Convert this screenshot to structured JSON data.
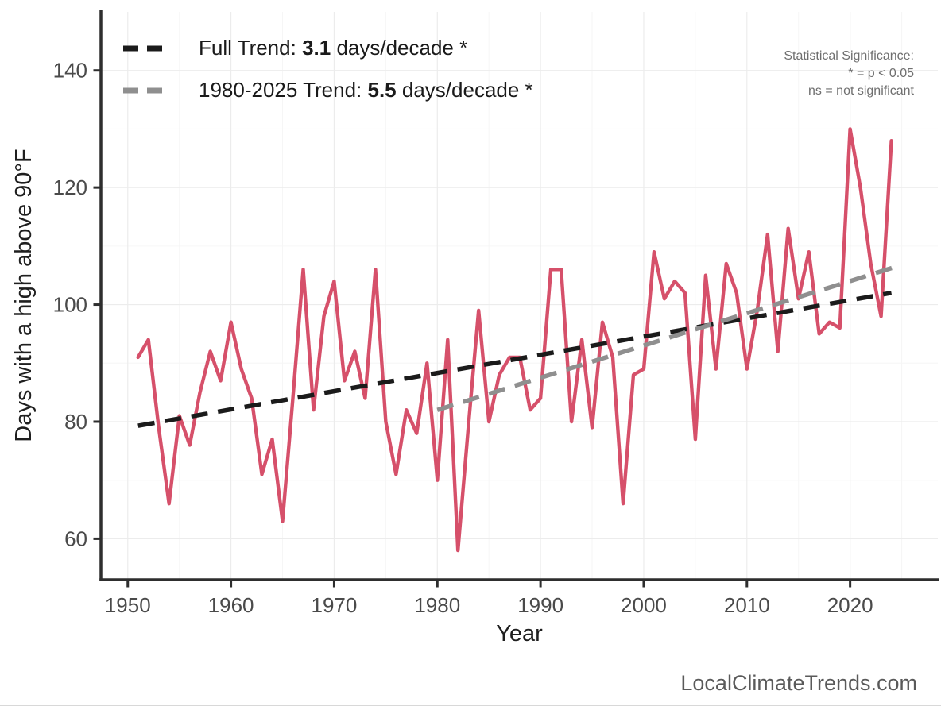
{
  "page": {
    "watermark": "LocalClimateTrends.com"
  },
  "legend": {
    "full_trend": {
      "prefix": "Full Trend: ",
      "value": "3.1",
      "suffix": " days/decade *"
    },
    "recent_trend": {
      "prefix": "1980-2025 Trend: ",
      "value": "5.5",
      "suffix": " days/decade *"
    }
  },
  "significance_note": {
    "line1": "Statistical Significance:",
    "line2": "* = p < 0.05",
    "line3": "ns = not significant"
  },
  "chart_data": {
    "type": "line",
    "xlabel": "Year",
    "ylabel": "Days with a high above 90°F",
    "x": [
      1951,
      1952,
      1953,
      1954,
      1955,
      1956,
      1957,
      1958,
      1959,
      1960,
      1961,
      1962,
      1963,
      1964,
      1965,
      1966,
      1967,
      1968,
      1969,
      1970,
      1971,
      1972,
      1973,
      1974,
      1975,
      1976,
      1977,
      1978,
      1979,
      1980,
      1981,
      1982,
      1983,
      1984,
      1985,
      1986,
      1987,
      1988,
      1989,
      1990,
      1991,
      1992,
      1993,
      1994,
      1995,
      1996,
      1997,
      1998,
      1999,
      2000,
      2001,
      2002,
      2003,
      2004,
      2005,
      2006,
      2007,
      2008,
      2009,
      2010,
      2011,
      2012,
      2013,
      2014,
      2015,
      2016,
      2017,
      2018,
      2019,
      2020,
      2021,
      2022,
      2023,
      2024
    ],
    "series": [
      {
        "name": "days-above-90F-per-year",
        "color": "#d6506a",
        "values": [
          91,
          94,
          79,
          66,
          81,
          76,
          85,
          92,
          87,
          97,
          89,
          84,
          71,
          77,
          63,
          84,
          106,
          82,
          98,
          104,
          87,
          92,
          84,
          106,
          80,
          71,
          82,
          78,
          90,
          70,
          94,
          58,
          79,
          99,
          80,
          88,
          91,
          91,
          82,
          84,
          106,
          106,
          80,
          94,
          79,
          97,
          91,
          66,
          88,
          89,
          109,
          101,
          104,
          102,
          77,
          105,
          89,
          107,
          102,
          89,
          99,
          112,
          92,
          113,
          101,
          109,
          95,
          97,
          96,
          130,
          120,
          107,
          98,
          128
        ]
      }
    ],
    "trend_lines": [
      {
        "name": "Full Trend",
        "slope_days_per_decade": 3.1,
        "significant": true,
        "color": "#1b1b1b",
        "style": "dashed",
        "x": [
          1951,
          2024
        ],
        "y": [
          79.3,
          102.0
        ]
      },
      {
        "name": "1980-2025 Trend",
        "slope_days_per_decade": 5.5,
        "significant": true,
        "color": "#8f8f8f",
        "style": "dashed",
        "x": [
          1980,
          2024.5
        ],
        "y": [
          82.0,
          106.5
        ]
      }
    ],
    "xticks": [
      1950,
      1960,
      1970,
      1980,
      1990,
      2000,
      2010,
      2020
    ],
    "yticks": [
      60,
      80,
      100,
      120,
      140
    ],
    "xlim": [
      1947.4,
      2028.5
    ],
    "ylim": [
      53,
      150
    ],
    "grid": true,
    "legend_position": "top-left",
    "background": "#ffffff"
  }
}
